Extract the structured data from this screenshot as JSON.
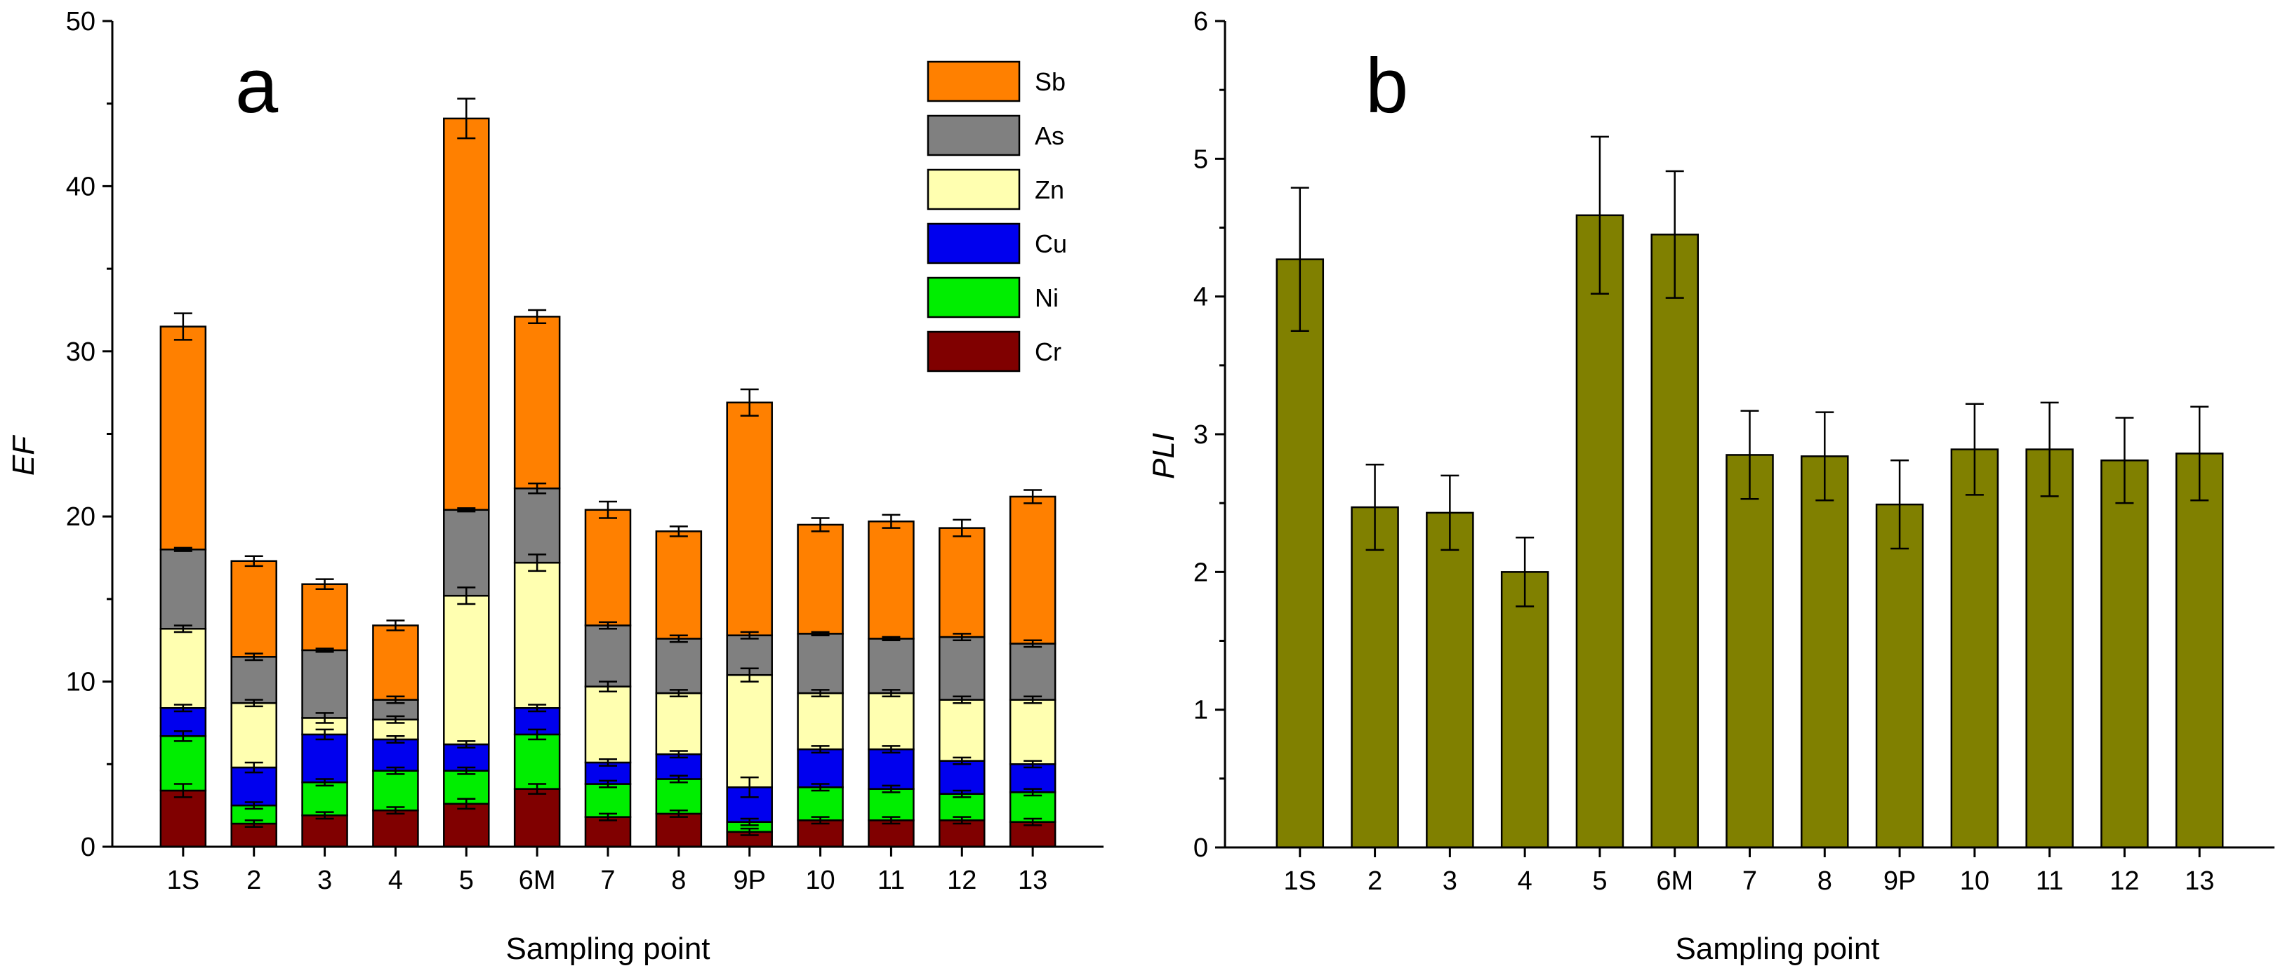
{
  "chart_data": [
    {
      "panel_label": "a",
      "type": "bar",
      "stacked": true,
      "xlabel": "Sampling point",
      "ylabel": "EF",
      "ylim": [
        0,
        50
      ],
      "yticks": [
        0,
        10,
        20,
        30,
        40,
        50
      ],
      "legend_position": "top-right",
      "legend_order": [
        "Sb",
        "As",
        "Zn",
        "Cu",
        "Ni",
        "Cr"
      ],
      "categories": [
        "1S",
        "2",
        "3",
        "4",
        "5",
        "6M",
        "7",
        "8",
        "9P",
        "10",
        "11",
        "12",
        "13"
      ],
      "series": [
        {
          "name": "Cr",
          "color": "#800000",
          "values": [
            3.4,
            1.4,
            1.9,
            2.2,
            2.6,
            3.5,
            1.8,
            2.0,
            0.9,
            1.6,
            1.6,
            1.6,
            1.5
          ],
          "errors": [
            0.4,
            0.2,
            0.2,
            0.2,
            0.3,
            0.3,
            0.2,
            0.2,
            0.2,
            0.2,
            0.2,
            0.2,
            0.2
          ]
        },
        {
          "name": "Ni",
          "color": "#00ee00",
          "values": [
            3.3,
            1.1,
            2.0,
            2.4,
            2.0,
            3.3,
            2.0,
            2.1,
            0.6,
            2.0,
            1.9,
            1.6,
            1.8
          ],
          "errors": [
            0.3,
            0.2,
            0.2,
            0.2,
            0.2,
            0.3,
            0.2,
            0.2,
            0.2,
            0.2,
            0.2,
            0.2,
            0.2
          ]
        },
        {
          "name": "Cu",
          "color": "#0000ee",
          "values": [
            1.7,
            2.3,
            2.9,
            1.9,
            1.6,
            1.6,
            1.3,
            1.5,
            2.1,
            2.3,
            2.4,
            2.0,
            1.7
          ],
          "errors": [
            0.2,
            0.3,
            0.3,
            0.2,
            0.2,
            0.2,
            0.2,
            0.2,
            0.6,
            0.2,
            0.2,
            0.2,
            0.2
          ]
        },
        {
          "name": "Zn",
          "color": "#ffffb0",
          "values": [
            4.8,
            3.9,
            1.0,
            1.2,
            9.0,
            8.8,
            4.6,
            3.7,
            6.8,
            3.4,
            3.4,
            3.7,
            3.9
          ],
          "errors": [
            0.2,
            0.2,
            0.3,
            0.2,
            0.5,
            0.5,
            0.3,
            0.2,
            0.4,
            0.2,
            0.2,
            0.2,
            0.2
          ]
        },
        {
          "name": "As",
          "color": "#808080",
          "values": [
            4.8,
            2.8,
            4.1,
            1.2,
            5.2,
            4.5,
            3.7,
            3.3,
            2.4,
            3.6,
            3.3,
            3.8,
            3.4
          ],
          "errors": [
            0.1,
            0.2,
            0.1,
            0.2,
            0.1,
            0.3,
            0.2,
            0.2,
            0.2,
            0.1,
            0.1,
            0.2,
            0.2
          ]
        },
        {
          "name": "Sb",
          "color": "#ff8000",
          "values": [
            13.5,
            5.8,
            4.0,
            4.5,
            23.7,
            10.4,
            7.0,
            6.5,
            14.1,
            6.6,
            7.1,
            6.6,
            8.9
          ],
          "errors": [
            0.8,
            0.3,
            0.3,
            0.3,
            1.2,
            0.4,
            0.5,
            0.3,
            0.8,
            0.4,
            0.4,
            0.5,
            0.4
          ]
        }
      ]
    },
    {
      "panel_label": "b",
      "type": "bar",
      "xlabel": "Sampling point",
      "ylabel": "PLI",
      "ylim": [
        0,
        6
      ],
      "yticks": [
        0,
        1,
        2,
        3,
        4,
        5,
        6
      ],
      "color": "#808000",
      "categories": [
        "1S",
        "2",
        "3",
        "4",
        "5",
        "6M",
        "7",
        "8",
        "9P",
        "10",
        "11",
        "12",
        "13"
      ],
      "values": [
        4.27,
        2.47,
        2.43,
        2.0,
        4.59,
        4.45,
        2.85,
        2.84,
        2.49,
        2.89,
        2.89,
        2.81,
        2.86
      ],
      "errors": [
        0.52,
        0.31,
        0.27,
        0.25,
        0.57,
        0.46,
        0.32,
        0.32,
        0.32,
        0.33,
        0.34,
        0.31,
        0.34
      ]
    }
  ]
}
